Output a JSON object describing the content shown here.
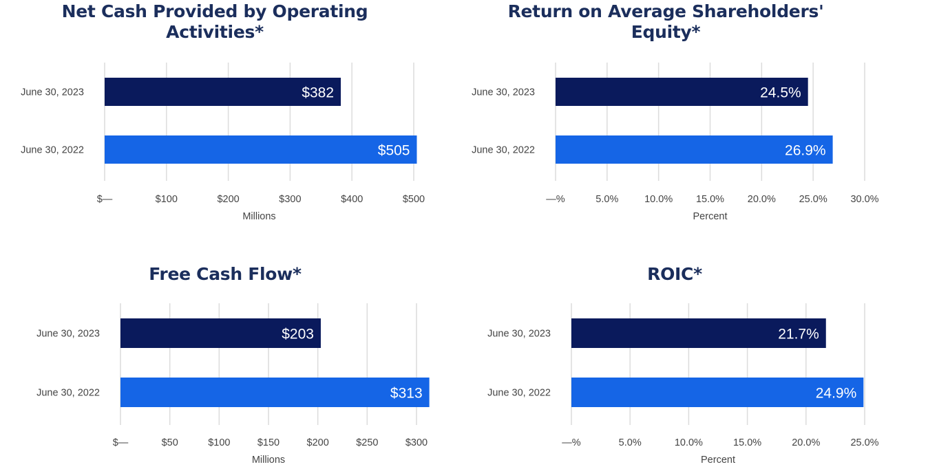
{
  "chart_data": [
    {
      "type": "bar",
      "title": "Net Cash Provided by Operating Activities*",
      "xlabel": "Millions",
      "categories": [
        "June 30, 2023",
        "June 30, 2022"
      ],
      "values": [
        382,
        505
      ],
      "value_labels": [
        "$382",
        "$505"
      ],
      "xlim": [
        0,
        500
      ],
      "ticks": [
        0,
        100,
        200,
        300,
        400,
        500
      ],
      "tick_labels": [
        "$—",
        "$100",
        "$200",
        "$300",
        "$400",
        "$500"
      ],
      "colors": [
        "#0a1a5c",
        "#1565e6"
      ],
      "grid": true
    },
    {
      "type": "bar",
      "title": "Return on Average Shareholders' Equity*",
      "xlabel": "Percent",
      "categories": [
        "June 30, 2023",
        "June 30, 2022"
      ],
      "values": [
        24.5,
        26.9
      ],
      "value_labels": [
        "24.5%",
        "26.9%"
      ],
      "xlim": [
        0,
        30
      ],
      "ticks": [
        0,
        5,
        10,
        15,
        20,
        25,
        30
      ],
      "tick_labels": [
        "—%",
        "5.0%",
        "10.0%",
        "15.0%",
        "20.0%",
        "25.0%",
        "30.0%"
      ],
      "colors": [
        "#0a1a5c",
        "#1565e6"
      ],
      "grid": true
    },
    {
      "type": "bar",
      "title": "Free Cash Flow*",
      "xlabel": "Millions",
      "categories": [
        "June 30, 2023",
        "June 30, 2022"
      ],
      "values": [
        203,
        313
      ],
      "value_labels": [
        "$203",
        "$313"
      ],
      "xlim": [
        0,
        300
      ],
      "ticks": [
        0,
        50,
        100,
        150,
        200,
        250,
        300
      ],
      "tick_labels": [
        "$—",
        "$50",
        "$100",
        "$150",
        "$200",
        "$250",
        "$300"
      ],
      "colors": [
        "#0a1a5c",
        "#1565e6"
      ],
      "grid": true
    },
    {
      "type": "bar",
      "title": "ROIC*",
      "xlabel": "Percent",
      "categories": [
        "June 30, 2023",
        "June 30, 2022"
      ],
      "values": [
        21.7,
        24.9
      ],
      "value_labels": [
        "21.7%",
        "24.9%"
      ],
      "xlim": [
        0,
        25
      ],
      "ticks": [
        0,
        5,
        10,
        15,
        20,
        25
      ],
      "tick_labels": [
        "—%",
        "5.0%",
        "10.0%",
        "15.0%",
        "20.0%",
        "25.0%"
      ],
      "colors": [
        "#0a1a5c",
        "#1565e6"
      ],
      "grid": true
    }
  ]
}
